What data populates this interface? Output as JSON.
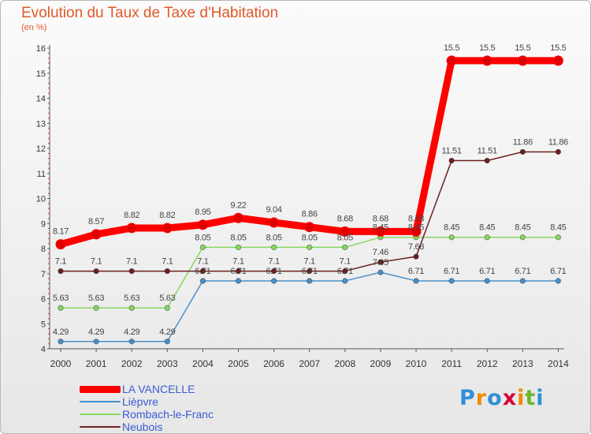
{
  "chart_data": {
    "type": "line",
    "title": "Evolution du Taux de Taxe d'Habitation",
    "subtitle": "(en %)",
    "xlabel": "",
    "ylabel": "",
    "x": [
      "2000",
      "2001",
      "2002",
      "2003",
      "2004",
      "2005",
      "2006",
      "2007",
      "2008",
      "2009",
      "2010",
      "2011",
      "2012",
      "2013",
      "2014"
    ],
    "ylim": [
      4,
      16
    ],
    "yticks": [
      "4",
      "5",
      "6",
      "7",
      "8",
      "9",
      "10",
      "11",
      "12",
      "13",
      "14",
      "15",
      "16"
    ],
    "grid": "none",
    "legend_position": "bottom-left",
    "series": [
      {
        "name": "LA VANCELLE",
        "color": "#ff0000",
        "values": [
          8.17,
          8.57,
          8.82,
          8.82,
          8.95,
          9.22,
          9.04,
          8.86,
          8.68,
          8.68,
          8.68,
          15.5,
          15.5,
          15.5,
          15.5
        ],
        "labels": [
          "8.17",
          "8.57",
          "8.82",
          "8.82",
          "8.95",
          "9.22",
          "9.04",
          "8.86",
          "8.68",
          "8.68",
          "8.68",
          "15.5",
          "15.5",
          "15.5",
          "15.5"
        ]
      },
      {
        "name": "Lièpvre",
        "color": "#4a90c8",
        "values": [
          4.29,
          4.29,
          4.29,
          4.29,
          6.71,
          6.71,
          6.71,
          6.71,
          6.71,
          7.05,
          6.71,
          6.71,
          6.71,
          6.71,
          6.71
        ],
        "labels": [
          "4.29",
          "4.29",
          "4.29",
          "4.29",
          "6.71",
          "6.71",
          "6.71",
          "6.71",
          "6.71",
          "7.05",
          "6.71",
          "6.71",
          "6.71",
          "6.71",
          "6.71"
        ]
      },
      {
        "name": "Rombach-le-Franc",
        "color": "#88d860",
        "values": [
          5.63,
          5.63,
          5.63,
          5.63,
          8.05,
          8.05,
          8.05,
          8.05,
          8.05,
          8.45,
          8.45,
          8.45,
          8.45,
          8.45,
          8.45
        ],
        "labels": [
          "5.63",
          "5.63",
          "5.63",
          "5.63",
          "8.05",
          "8.05",
          "8.05",
          "8.05",
          "8.05",
          "8.45",
          "8.45",
          "8.45",
          "8.45",
          "8.45",
          "8.45"
        ]
      },
      {
        "name": "Neubois",
        "color": "#6b2020",
        "values": [
          7.1,
          7.1,
          7.1,
          7.1,
          7.1,
          7.1,
          7.1,
          7.1,
          7.1,
          7.46,
          7.68,
          11.51,
          11.51,
          11.86,
          11.86
        ],
        "labels": [
          "7.1",
          "7.1",
          "7.1",
          "7.1",
          "7.1",
          "7.1",
          "7.1",
          "7.1",
          "7.1",
          "7.46",
          "7.68",
          "11.51",
          "11.51",
          "11.86",
          "11.86"
        ]
      }
    ]
  },
  "logo": {
    "letters": [
      "P",
      "r",
      "o",
      "x",
      "i",
      "t",
      "i"
    ],
    "colors": [
      "#2f8fd6",
      "#f08a00",
      "#2f8fd6",
      "#d6003a",
      "#f08a00",
      "#6bb82a",
      "#2f8fd6"
    ]
  }
}
